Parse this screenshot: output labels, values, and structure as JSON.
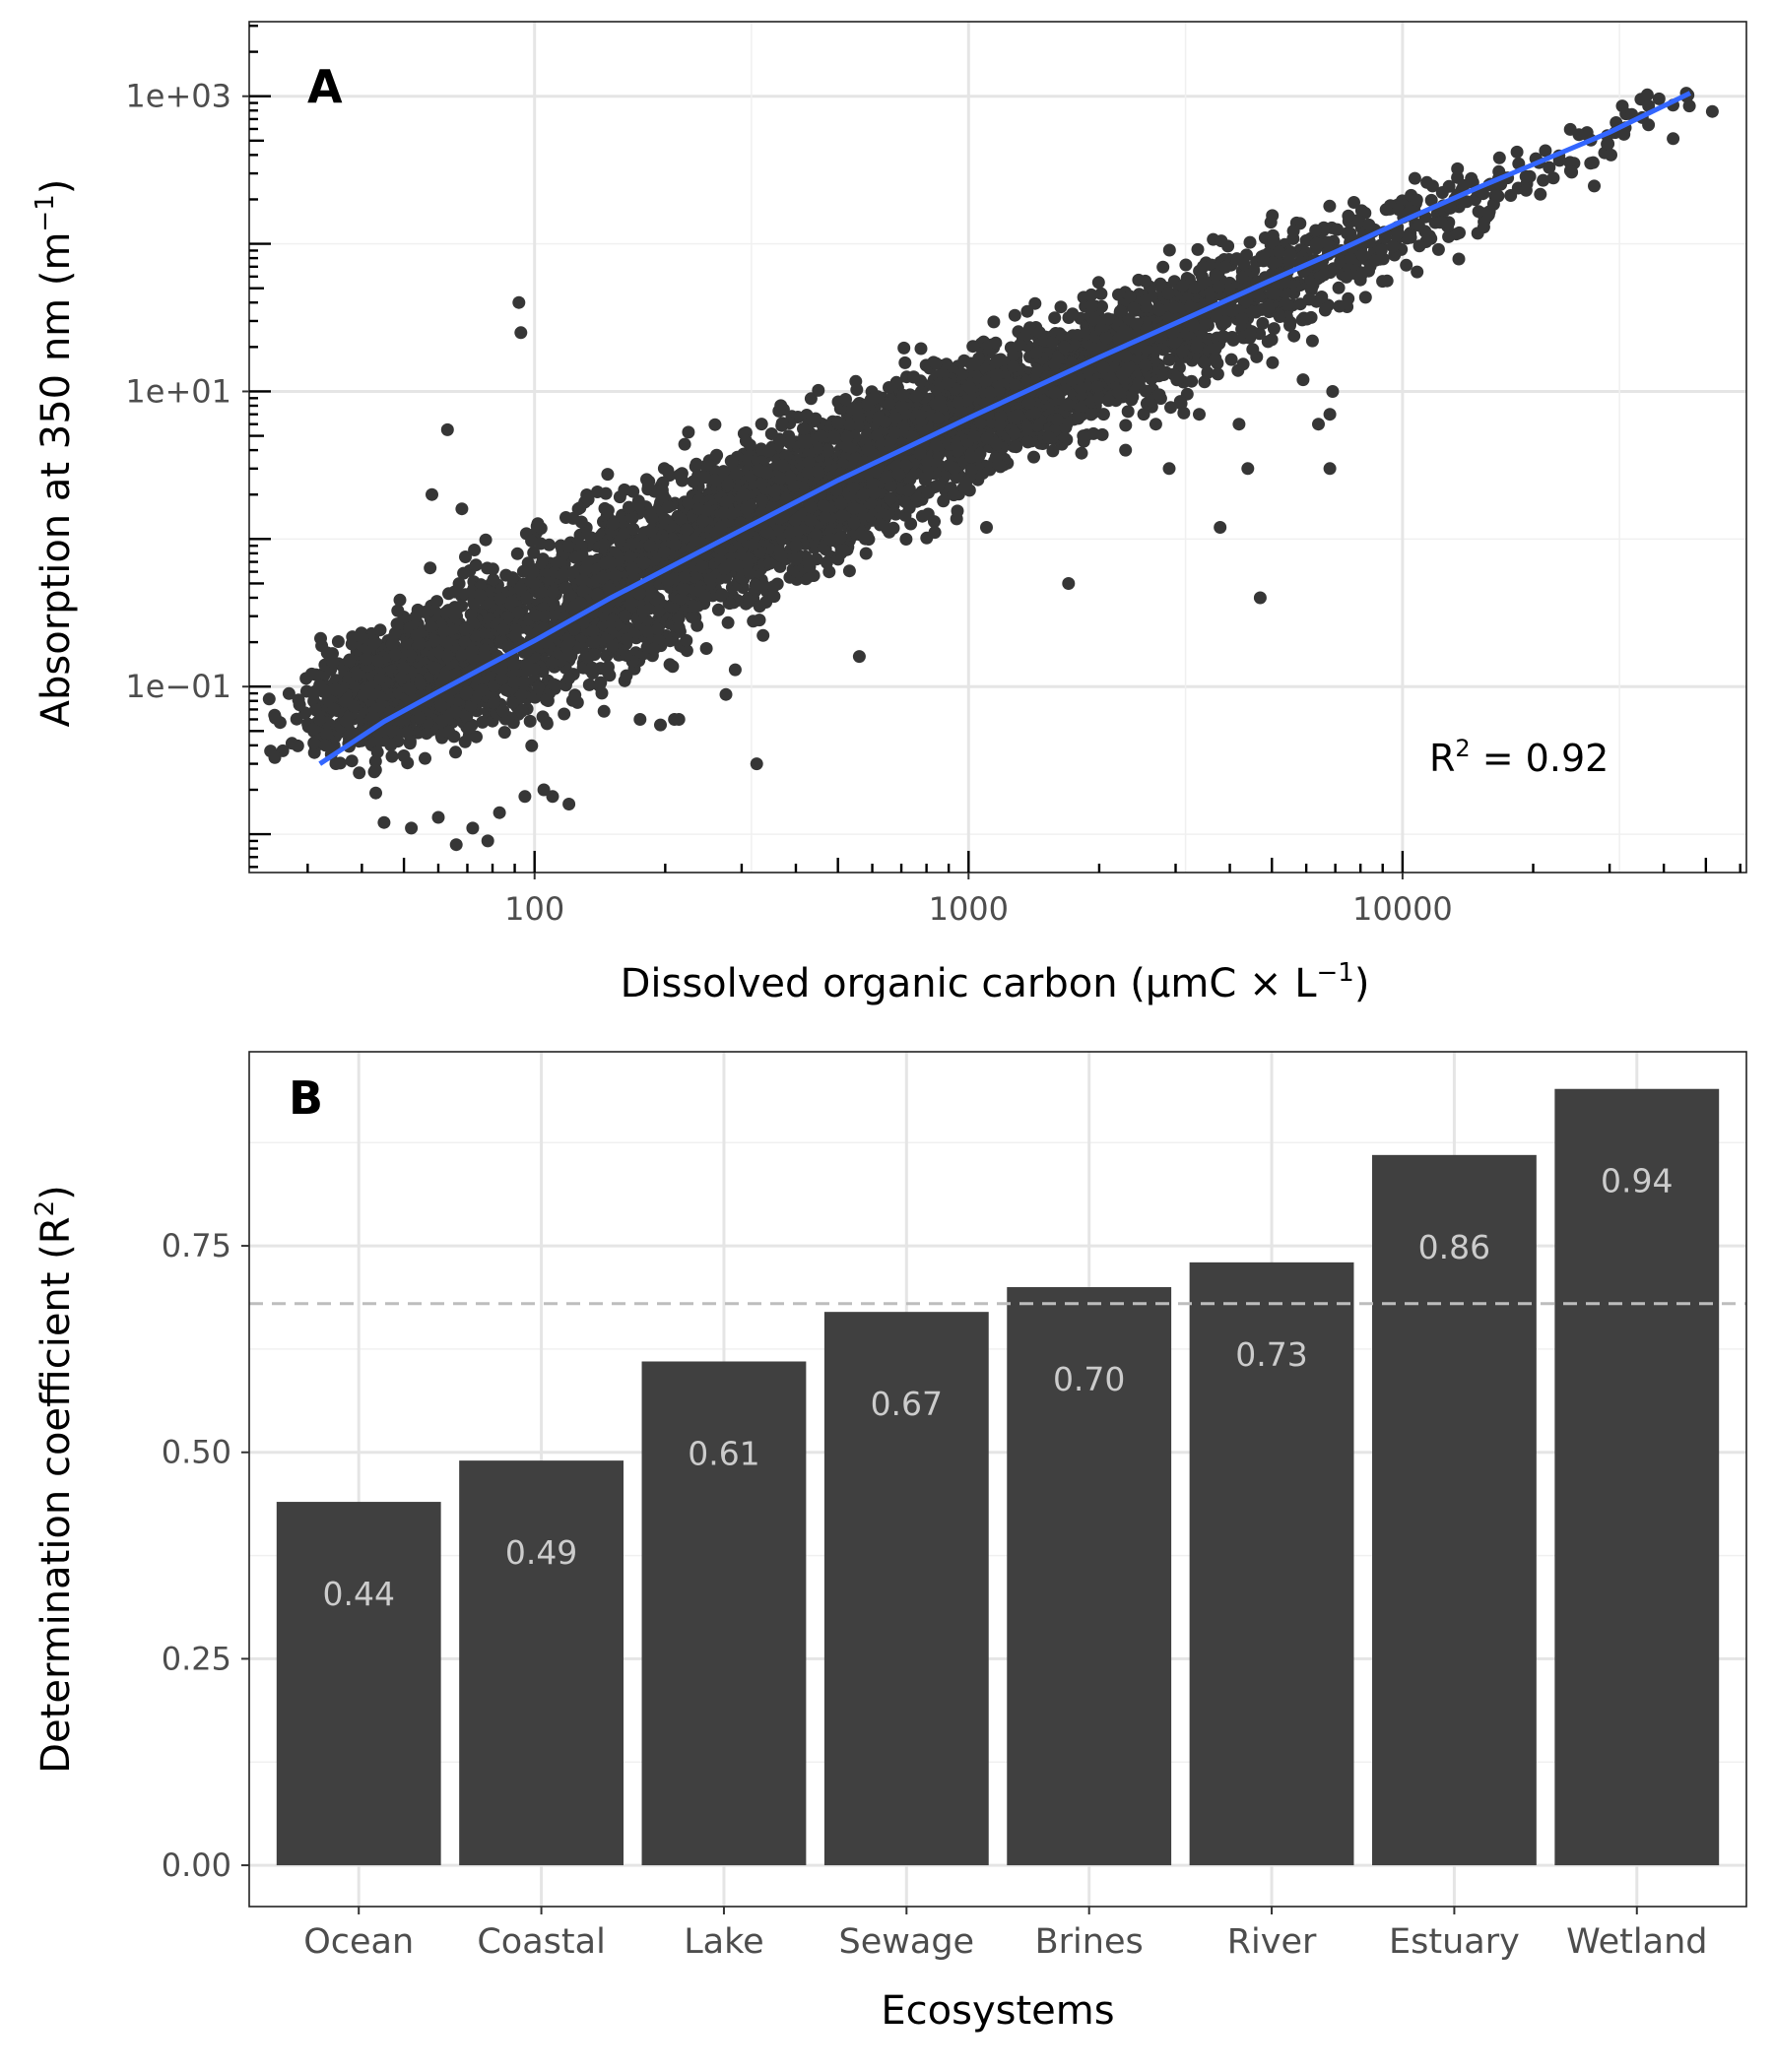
{
  "chart_data": [
    {
      "panel_label": "A",
      "type": "scatter",
      "xlabel": {
        "main": "Dissolved organic carbon (µmC × L",
        "sup": "−1",
        "tail": ")"
      },
      "ylabel": {
        "main": "Absorption at 350 nm (m",
        "sup": "−1",
        "tail": ")"
      },
      "x_scale": "log10",
      "y_scale": "log10",
      "xlim": [
        22,
        62000
      ],
      "ylim": [
        0.0055,
        3200
      ],
      "x_ticks": [
        {
          "value": 100,
          "label": "100"
        },
        {
          "value": 1000,
          "label": "1000"
        },
        {
          "value": 10000,
          "label": "10000"
        }
      ],
      "y_ticks": [
        {
          "value": 0.1,
          "label": "1e−01"
        },
        {
          "value": 10,
          "label": "1e+01"
        },
        {
          "value": 1000,
          "label": "1e+03"
        }
      ],
      "annotation": {
        "label": "R",
        "sup": "2",
        "value": " = 0.92"
      },
      "fit_line": {
        "color": "#3366ff",
        "x": [
          32,
          45,
          60,
          80,
          100,
          150,
          200,
          300,
          500,
          700,
          1000,
          1500,
          2000,
          3000,
          5000,
          7000,
          10000,
          15000,
          20000,
          30000,
          46000
        ],
        "y": [
          0.03,
          0.058,
          0.092,
          0.145,
          0.205,
          0.4,
          0.62,
          1.15,
          2.5,
          4.0,
          6.6,
          11.5,
          17.0,
          29.0,
          57,
          88,
          143,
          242,
          345,
          570,
          1050
        ]
      },
      "scatter_clusters": [
        {
          "x": 45,
          "y": 0.1,
          "n": 520,
          "sx": 0.1,
          "sy": 0.18
        },
        {
          "x": 70,
          "y": 0.14,
          "n": 560,
          "sx": 0.12,
          "sy": 0.26
        },
        {
          "x": 130,
          "y": 0.35,
          "n": 640,
          "sx": 0.14,
          "sy": 0.3
        },
        {
          "x": 250,
          "y": 1.0,
          "n": 760,
          "sx": 0.15,
          "sy": 0.28
        },
        {
          "x": 500,
          "y": 2.6,
          "n": 820,
          "sx": 0.16,
          "sy": 0.25
        },
        {
          "x": 1000,
          "y": 6.5,
          "n": 780,
          "sx": 0.16,
          "sy": 0.22
        },
        {
          "x": 2000,
          "y": 16,
          "n": 620,
          "sx": 0.16,
          "sy": 0.2
        },
        {
          "x": 4000,
          "y": 40,
          "n": 360,
          "sx": 0.17,
          "sy": 0.18
        },
        {
          "x": 8000,
          "y": 100,
          "n": 170,
          "sx": 0.17,
          "sy": 0.14
        },
        {
          "x": 18000,
          "y": 280,
          "n": 70,
          "sx": 0.15,
          "sy": 0.1
        },
        {
          "x": 35000,
          "y": 800,
          "n": 20,
          "sx": 0.08,
          "sy": 0.08
        }
      ],
      "outliers": [
        [
          32,
          0.06
        ],
        [
          33,
          0.04
        ],
        [
          31,
          0.09
        ],
        [
          45,
          0.012
        ],
        [
          52,
          0.011
        ],
        [
          60,
          0.013
        ],
        [
          66,
          0.0085
        ],
        [
          72,
          0.011
        ],
        [
          78,
          0.009
        ],
        [
          83,
          0.014
        ],
        [
          95,
          0.018
        ],
        [
          105,
          0.02
        ],
        [
          110,
          0.018
        ],
        [
          120,
          0.016
        ],
        [
          175,
          0.06
        ],
        [
          195,
          0.055
        ],
        [
          210,
          0.06
        ],
        [
          215,
          0.06
        ],
        [
          290,
          0.13
        ],
        [
          325,
          0.03
        ],
        [
          560,
          0.16
        ],
        [
          92,
          40
        ],
        [
          93,
          25
        ],
        [
          63,
          5.5
        ],
        [
          68,
          1.6
        ],
        [
          58,
          2.0
        ],
        [
          330,
          0.35
        ],
        [
          400,
          0.9
        ],
        [
          1100,
          1.2
        ],
        [
          1700,
          0.5
        ],
        [
          2300,
          4
        ],
        [
          2700,
          6
        ],
        [
          2900,
          3
        ],
        [
          3400,
          7
        ],
        [
          3800,
          1.2
        ],
        [
          4200,
          6
        ],
        [
          4400,
          3
        ],
        [
          4700,
          0.4
        ],
        [
          5500,
          28
        ],
        [
          6200,
          22
        ],
        [
          6800,
          7
        ],
        [
          6800,
          3
        ],
        [
          6900,
          10
        ],
        [
          6400,
          6
        ],
        [
          5900,
          12
        ]
      ]
    },
    {
      "panel_label": "B",
      "type": "bar",
      "xlabel": "Ecosystems",
      "ylabel": {
        "main": "Determination coefficient (R",
        "sup": "2",
        "tail": ")"
      },
      "categories": [
        "Ocean",
        "Coastal",
        "Lake",
        "Sewage",
        "Brines",
        "River",
        "Estuary",
        "Wetland"
      ],
      "values": [
        0.44,
        0.49,
        0.61,
        0.67,
        0.7,
        0.73,
        0.86,
        0.94
      ],
      "value_labels": [
        "0.44",
        "0.49",
        "0.61",
        "0.67",
        "0.70",
        "0.73",
        "0.86",
        "0.94"
      ],
      "ylim": [
        -0.05,
        0.985
      ],
      "y_ticks": [
        {
          "value": 0.0,
          "label": "0.00"
        },
        {
          "value": 0.25,
          "label": "0.25"
        },
        {
          "value": 0.5,
          "label": "0.50"
        },
        {
          "value": 0.75,
          "label": "0.75"
        }
      ],
      "reference_line": 0.68,
      "bar_color": "#404040",
      "label_color": "#cccccc",
      "reference_color": "#bdbdbd"
    }
  ]
}
